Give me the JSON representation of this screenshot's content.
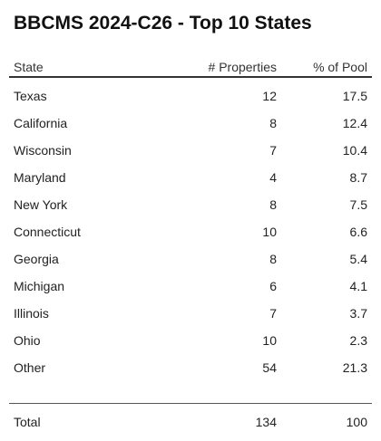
{
  "chart_data": {
    "type": "table",
    "title": "BBCMS 2024-C26 - Top 10 States",
    "columns": [
      "State",
      "# Properties",
      "% of Pool"
    ],
    "rows": [
      {
        "state": "Texas",
        "properties": "12",
        "pool": "17.5"
      },
      {
        "state": "California",
        "properties": "8",
        "pool": "12.4"
      },
      {
        "state": "Wisconsin",
        "properties": "7",
        "pool": "10.4"
      },
      {
        "state": "Maryland",
        "properties": "4",
        "pool": "8.7"
      },
      {
        "state": "New York",
        "properties": "8",
        "pool": "7.5"
      },
      {
        "state": "Connecticut",
        "properties": "10",
        "pool": "6.6"
      },
      {
        "state": "Georgia",
        "properties": "8",
        "pool": "5.4"
      },
      {
        "state": "Michigan",
        "properties": "6",
        "pool": "4.1"
      },
      {
        "state": "Illinois",
        "properties": "7",
        "pool": "3.7"
      },
      {
        "state": "Ohio",
        "properties": "10",
        "pool": "2.3"
      },
      {
        "state": "Other",
        "properties": "54",
        "pool": "21.3"
      }
    ],
    "total": {
      "label": "Total",
      "properties": "134",
      "pool": "100"
    }
  }
}
